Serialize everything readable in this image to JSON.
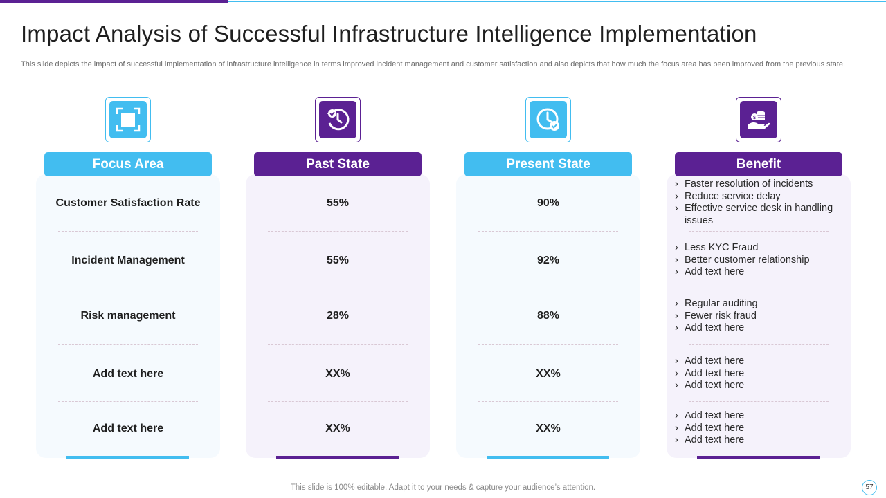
{
  "slide": {
    "title": "Impact Analysis of Successful Infrastructure Intelligence Implementation",
    "subtitle": "This slide depicts the impact of successful implementation of infrastructure intelligence in terms improved incident management and customer satisfaction and also depicts that how much the focus area has been improved from the previous state.",
    "footer": "This slide is 100% editable. Adapt it to your needs & capture your audience’s attention.",
    "page_number": "57"
  },
  "colors": {
    "blue": "#42bdf0",
    "purple": "#5b2193"
  },
  "columns": [
    {
      "header": "Focus Area",
      "icon": "focus-frame-icon",
      "color": "blue",
      "rows": [
        "Customer Satisfaction Rate",
        "Incident Management",
        "Risk management",
        "Add text here",
        "Add text here"
      ]
    },
    {
      "header": "Past State",
      "icon": "clock-refresh-icon",
      "color": "purple",
      "rows": [
        "55%",
        "55%",
        "28%",
        "XX%",
        "XX%"
      ]
    },
    {
      "header": "Present State",
      "icon": "clock-check-icon",
      "color": "blue",
      "rows": [
        "90%",
        "92%",
        "88%",
        "XX%",
        "XX%"
      ]
    },
    {
      "header": "Benefit",
      "icon": "hand-coins-icon",
      "color": "purple",
      "rows": [
        [
          "Faster resolution of incidents",
          "Reduce service delay",
          "Effective service desk in handling issues"
        ],
        [
          "Less KYC Fraud",
          "Better customer relationship",
          "Add text here"
        ],
        [
          "Regular auditing",
          "Fewer risk fraud",
          "Add text here"
        ],
        [
          "Add text here",
          "Add text here",
          "Add text here"
        ],
        [
          "Add text here",
          "Add text here",
          "Add text here"
        ]
      ]
    }
  ]
}
